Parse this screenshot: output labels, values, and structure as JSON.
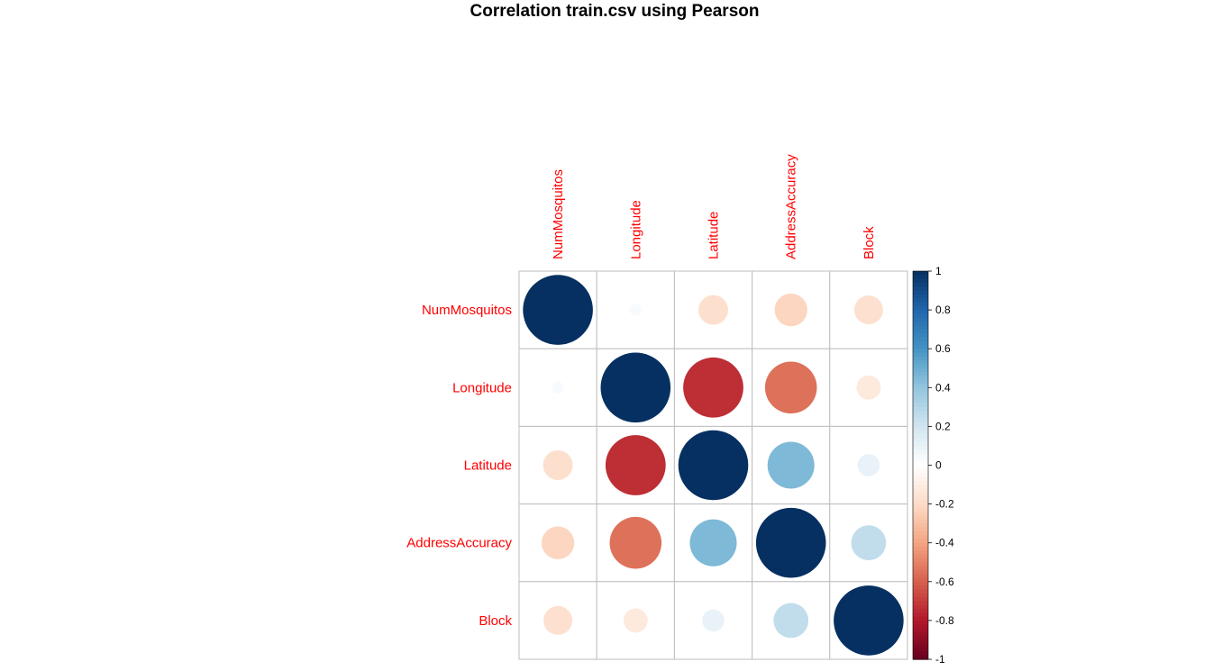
{
  "chart_data": {
    "type": "heatmap",
    "title": "Correlation train.csv using Pearson",
    "variables": [
      "NumMosquitos",
      "Longitude",
      "Latitude",
      "AddressAccuracy",
      "Block"
    ],
    "matrix": [
      [
        1.0,
        0.03,
        -0.18,
        -0.22,
        -0.17
      ],
      [
        0.03,
        1.0,
        -0.74,
        -0.55,
        -0.12
      ],
      [
        -0.18,
        -0.74,
        1.0,
        0.45,
        0.1
      ],
      [
        -0.22,
        -0.55,
        0.45,
        1.0,
        0.25
      ],
      [
        -0.17,
        -0.12,
        0.1,
        0.25,
        1.0
      ]
    ],
    "colorbar": {
      "range": [
        -1,
        1
      ],
      "tick_labels": [
        "1",
        "0.8",
        "0.6",
        "0.4",
        "0.2",
        "0",
        "-0.2",
        "-0.4",
        "-0.6",
        "-0.8",
        "-1"
      ],
      "tick_values": [
        1,
        0.8,
        0.6,
        0.4,
        0.2,
        0,
        -0.2,
        -0.4,
        -0.6,
        -0.8,
        -1
      ]
    },
    "label_color": "#ff0000",
    "colors": {
      "palette": [
        "#67001F",
        "#B2182B",
        "#D6604D",
        "#F4A582",
        "#FDDBC7",
        "#FFFFFF",
        "#D1E5F0",
        "#92C5DE",
        "#4393C3",
        "#2166AC",
        "#053061"
      ],
      "grid": "#bebebe"
    }
  }
}
